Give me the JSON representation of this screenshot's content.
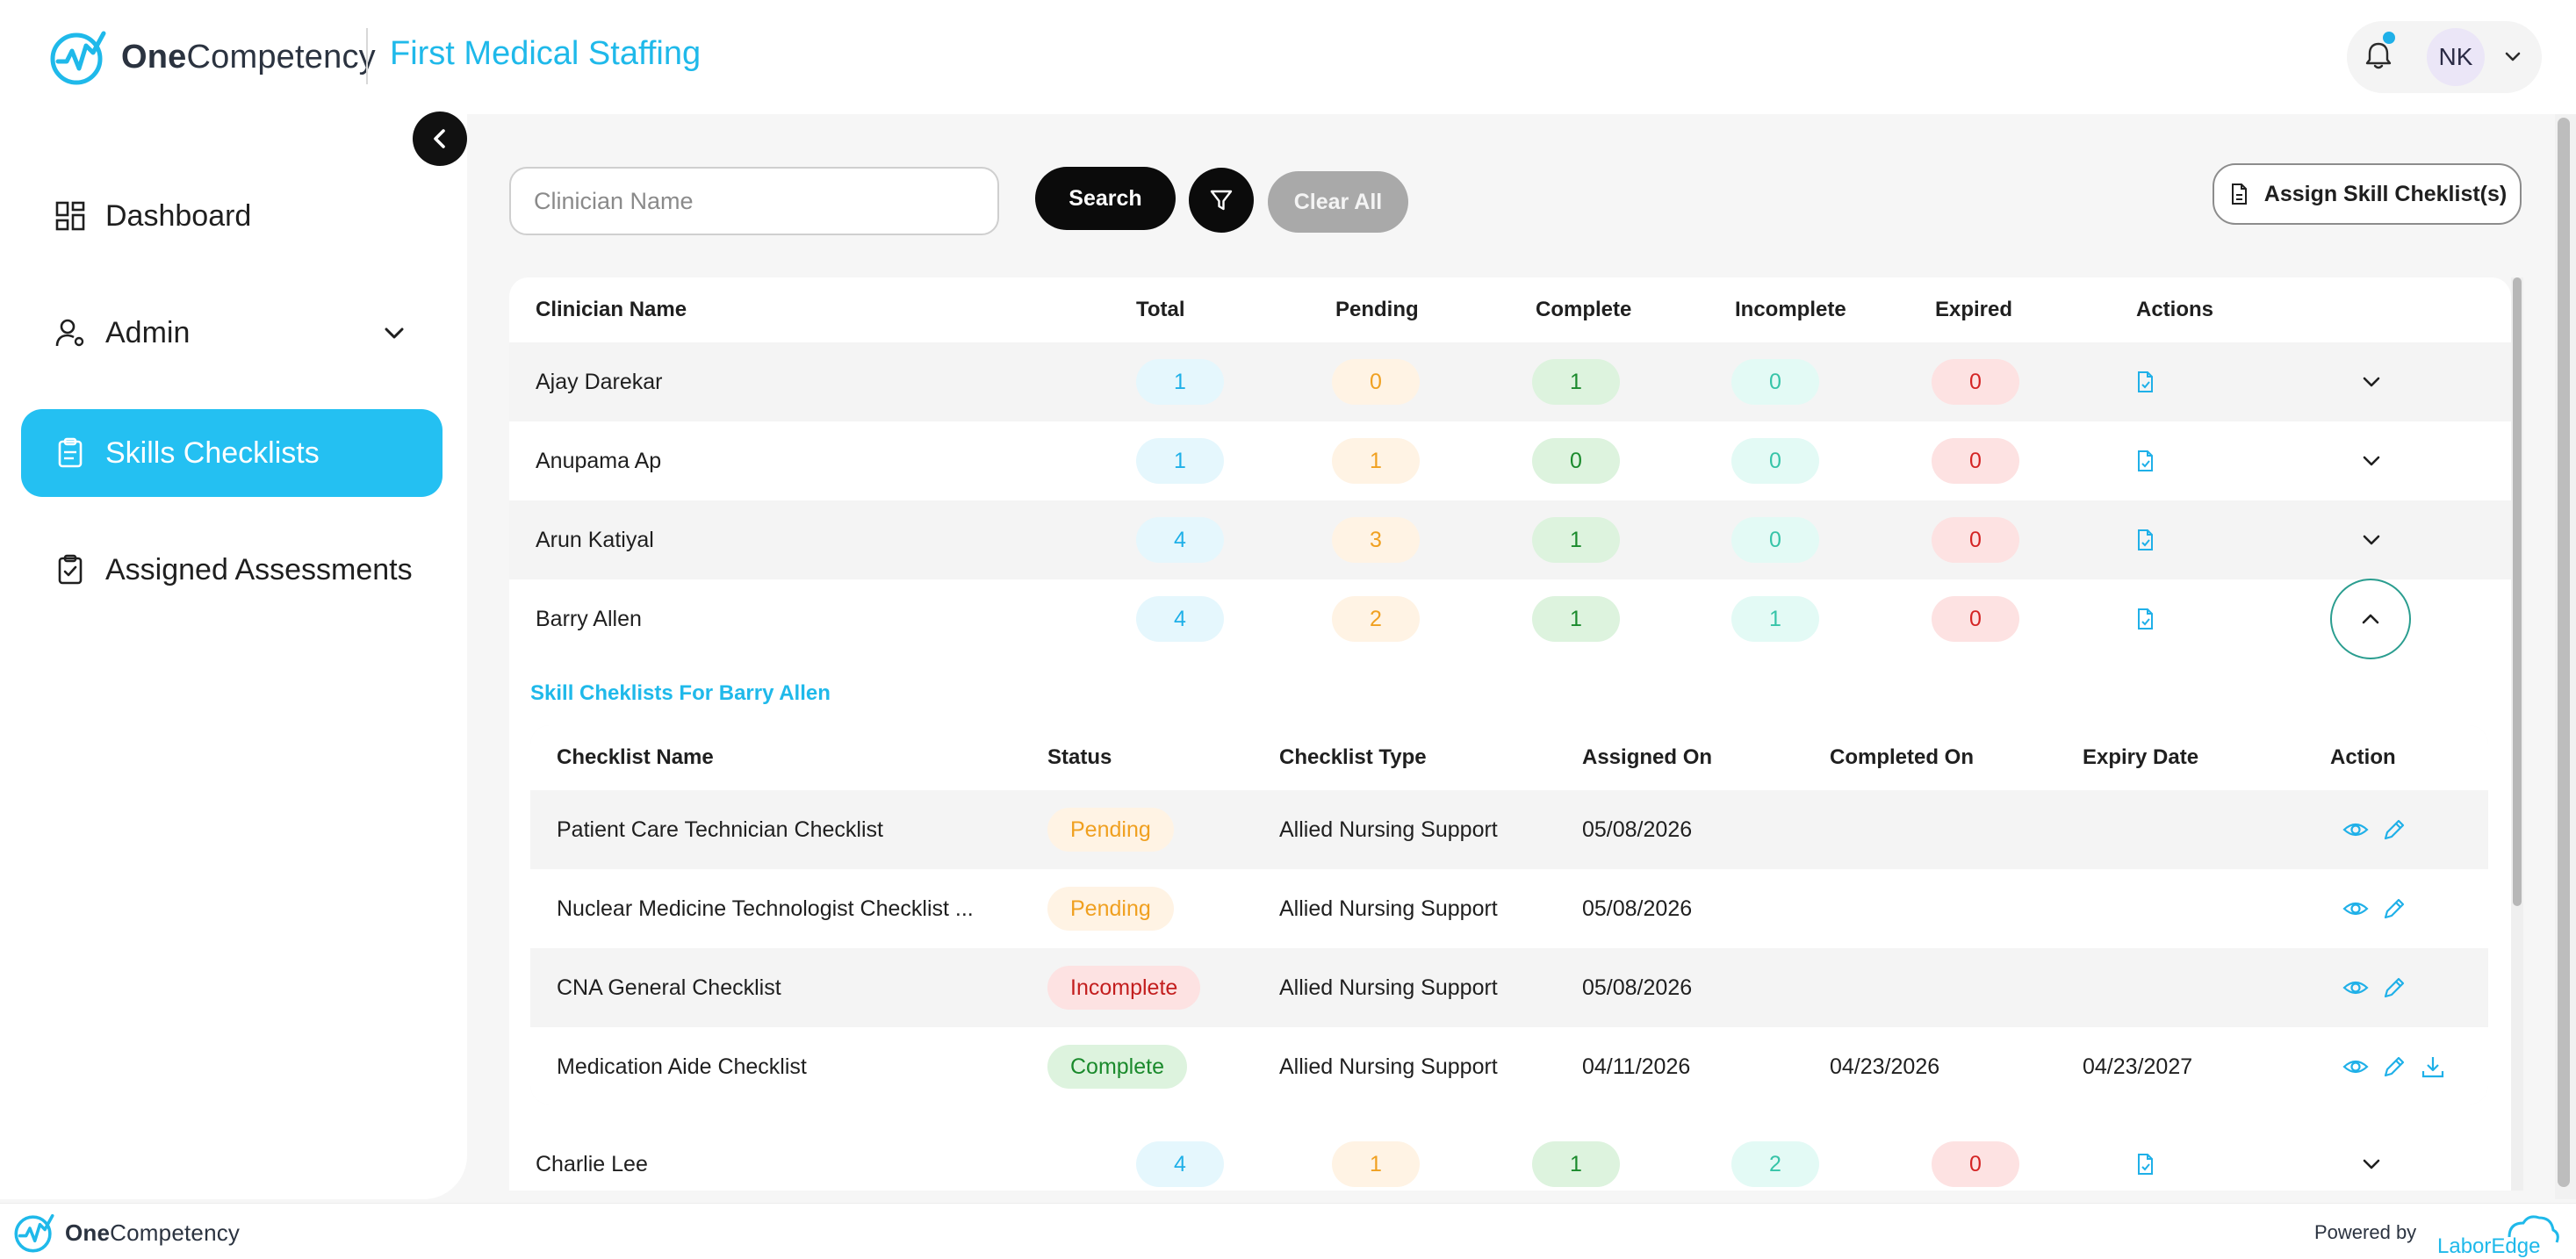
{
  "header": {
    "brand_bold": "One",
    "brand_rest": "Competency",
    "org_name": "First Medical Staffing",
    "user_initials": "NK"
  },
  "sidebar": {
    "items": [
      {
        "label": "Dashboard",
        "icon": "dashboard-icon"
      },
      {
        "label": "Admin",
        "icon": "admin-user-icon"
      },
      {
        "label": "Skills Checklists",
        "icon": "clipboard-icon"
      },
      {
        "label": "Assigned Assessments",
        "icon": "clipboard-check-icon"
      }
    ]
  },
  "toolbar": {
    "search_placeholder": "Clinician Name",
    "search_label": "Search",
    "clear_label": "Clear All",
    "assign_label": "Assign Skill Cheklist(s)"
  },
  "table": {
    "headers": [
      "Clinician Name",
      "Total",
      "Pending",
      "Complete",
      "Incomplete",
      "Expired",
      "Actions"
    ],
    "rows": [
      {
        "name": "Ajay Darekar",
        "total": "1",
        "pending": "0",
        "complete": "1",
        "incomplete": "0",
        "expired": "0"
      },
      {
        "name": "Anupama Ap",
        "total": "1",
        "pending": "1",
        "complete": "0",
        "incomplete": "0",
        "expired": "0"
      },
      {
        "name": "Arun Katiyal",
        "total": "4",
        "pending": "3",
        "complete": "1",
        "incomplete": "0",
        "expired": "0"
      },
      {
        "name": "Barry Allen",
        "total": "4",
        "pending": "2",
        "complete": "1",
        "incomplete": "1",
        "expired": "0"
      },
      {
        "name": "Charlie Lee",
        "total": "4",
        "pending": "1",
        "complete": "1",
        "incomplete": "2",
        "expired": "0"
      }
    ]
  },
  "subtable": {
    "title": "Skill Cheklists For Barry Allen",
    "headers": [
      "Checklist Name",
      "Status",
      "Checklist Type",
      "Assigned On",
      "Completed On",
      "Expiry Date",
      "Action"
    ],
    "rows": [
      {
        "name": "Patient Care Technician Checklist",
        "status": "Pending",
        "type": "Allied Nursing Support",
        "assigned": "05/08/2026",
        "completed": "",
        "expiry": ""
      },
      {
        "name": "Nuclear Medicine Technologist Checklist ...",
        "status": "Pending",
        "type": "Allied Nursing Support",
        "assigned": "05/08/2026",
        "completed": "",
        "expiry": ""
      },
      {
        "name": "CNA General Checklist",
        "status": "Incomplete",
        "type": "Allied Nursing Support",
        "assigned": "05/08/2026",
        "completed": "",
        "expiry": ""
      },
      {
        "name": "Medication Aide Checklist",
        "status": "Complete",
        "type": "Allied Nursing Support",
        "assigned": "04/11/2026",
        "completed": "04/23/2026",
        "expiry": "04/23/2027"
      }
    ]
  },
  "footer": {
    "brand_bold": "One",
    "brand_rest": "Competency",
    "powered_by": "Powered by",
    "partner_logo_text": "LaborEdge"
  },
  "colors": {
    "accent": "#1fb9ea",
    "active_nav": "#24c0f2",
    "pending": "#f0a020",
    "complete": "#1a8a2c",
    "incomplete": "#36c4a8",
    "expired": "#d42424"
  }
}
